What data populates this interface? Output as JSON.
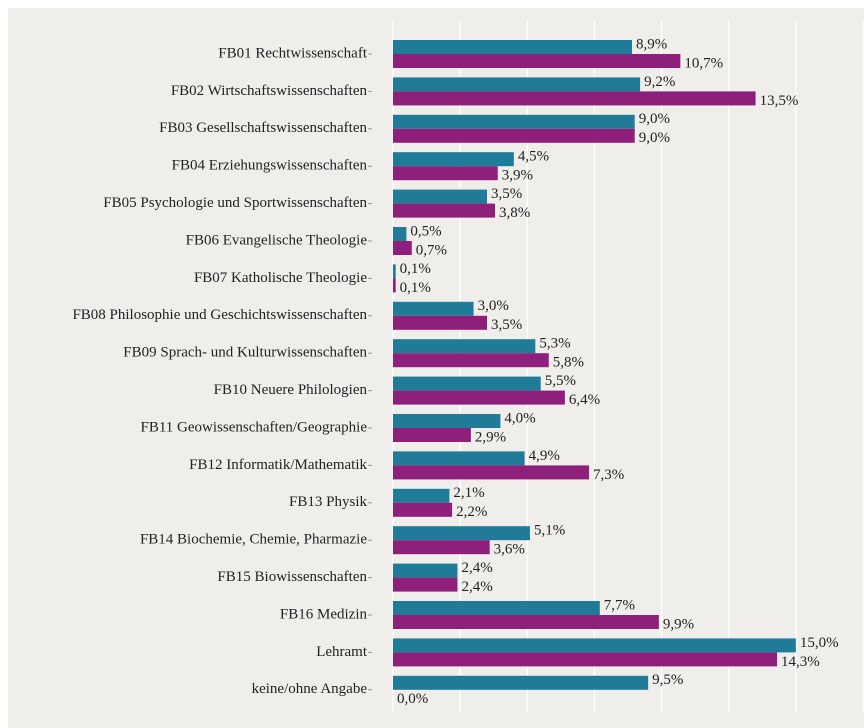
{
  "chart_data": {
    "type": "bar",
    "orientation": "horizontal",
    "categories": [
      "FB01 Rechtwissenschaft",
      "FB02 Wirtschaftswissenschaften",
      "FB03 Gesellschaftswissenschaften",
      "FB04 Erziehungswissenschaften",
      "FB05 Psychologie und Sportwissenschaften",
      "FB06 Evangelische Theologie",
      "FB07 Katholische Theologie",
      "FB08 Philosophie und Geschichtswissenschaften",
      "FB09 Sprach- und Kulturwissenschaften",
      "FB10 Neuere Philologien",
      "FB11 Geowissenschaften/Geographie",
      "FB12 Informatik/Mathematik",
      "FB13 Physik",
      "FB14 Biochemie, Chemie, Pharmazie",
      "FB15 Biowissenschaften",
      "FB16 Medizin",
      "Lehramt",
      "keine/ohne Angabe"
    ],
    "series": [
      {
        "color": "#1f7b98",
        "values": [
          8.9,
          9.2,
          9.0,
          4.5,
          3.5,
          0.5,
          0.1,
          3.0,
          5.3,
          5.5,
          4.0,
          4.9,
          2.1,
          5.1,
          2.4,
          7.7,
          15.0,
          9.5
        ],
        "value_labels": [
          "8,9%",
          "9,2%",
          "9,0%",
          "4,5%",
          "3,5%",
          "0,5%",
          "0,1%",
          "3,0%",
          "5,3%",
          "5,5%",
          "4,0%",
          "4,9%",
          "2,1%",
          "5,1%",
          "2,4%",
          "7,7%",
          "15,0%",
          "9,5%"
        ]
      },
      {
        "color": "#8e1f7a",
        "values": [
          10.7,
          13.5,
          9.0,
          3.9,
          3.8,
          0.7,
          0.1,
          3.5,
          5.8,
          6.4,
          2.9,
          7.3,
          2.2,
          3.6,
          2.4,
          9.9,
          14.3,
          0.0
        ],
        "value_labels": [
          "10,7%",
          "13,5%",
          "9,0%",
          "3,9%",
          "3,8%",
          "0,7%",
          "0,1%",
          "3,5%",
          "5,8%",
          "6,4%",
          "2,9%",
          "7,3%",
          "2,2%",
          "3,6%",
          "2,4%",
          "9,9%",
          "14,3%",
          "0,0%"
        ]
      }
    ],
    "xlim": [
      0,
      17.5
    ],
    "xticks": [
      0,
      2.5,
      5,
      7.5,
      10,
      12.5,
      15,
      17.5
    ],
    "grid": true
  }
}
